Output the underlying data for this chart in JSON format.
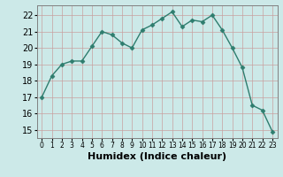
{
  "x": [
    0,
    1,
    2,
    3,
    4,
    5,
    6,
    7,
    8,
    9,
    10,
    11,
    12,
    13,
    14,
    15,
    16,
    17,
    18,
    19,
    20,
    21,
    22,
    23
  ],
  "y": [
    17.0,
    18.3,
    19.0,
    19.2,
    19.2,
    20.1,
    21.0,
    20.8,
    20.3,
    20.0,
    21.1,
    21.4,
    21.8,
    22.2,
    21.3,
    21.7,
    21.6,
    22.0,
    21.1,
    20.0,
    18.8,
    16.5,
    16.2,
    14.9
  ],
  "line_color": "#2e7d6e",
  "marker": "D",
  "marker_size": 2.5,
  "bg_color": "#cce9e8",
  "grid_color_minor": "#dfc0c0",
  "grid_color_major": "#b8b8b8",
  "xlabel": "Humidex (Indice chaleur)",
  "ylim": [
    14.5,
    22.6
  ],
  "xlim": [
    -0.5,
    23.5
  ],
  "yticks": [
    15,
    16,
    17,
    18,
    19,
    20,
    21,
    22
  ],
  "xticks": [
    0,
    1,
    2,
    3,
    4,
    5,
    6,
    7,
    8,
    9,
    10,
    11,
    12,
    13,
    14,
    15,
    16,
    17,
    18,
    19,
    20,
    21,
    22,
    23
  ],
  "line_width": 1.0
}
